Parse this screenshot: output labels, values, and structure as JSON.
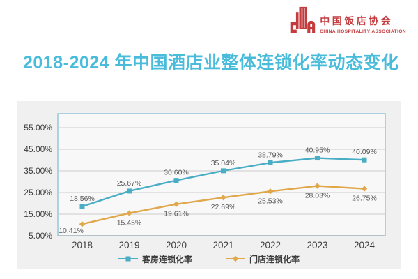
{
  "colors": {
    "title": "#4ABCDB",
    "logo_red": "#C43B3E"
  },
  "logo": {
    "icon": "building-ca-monogram-icon",
    "name_zh": "中国饭店协会",
    "name_en": "CHINA HOSPITALITY ASSOCIATION"
  },
  "chart_data": {
    "type": "line",
    "title": "2018-2024 年中国酒店业整体连锁化率动态变化",
    "categories": [
      "2018",
      "2019",
      "2020",
      "2021",
      "2022",
      "2023",
      "2024"
    ],
    "series": [
      {
        "name": "客房连锁化率",
        "color": "#48ADC5",
        "marker": "square",
        "label_position": "above",
        "values": [
          18.56,
          25.67,
          30.6,
          35.04,
          38.79,
          40.95,
          40.09
        ]
      },
      {
        "name": "门店连锁化率",
        "color": "#E0A74B",
        "marker": "diamond",
        "label_position": "below",
        "values": [
          10.41,
          15.45,
          19.61,
          22.69,
          25.53,
          28.03,
          26.75
        ]
      }
    ],
    "value_label_format": "{value}%",
    "y_axis": {
      "min": 5,
      "max": 55,
      "step": 10,
      "tick_labels": [
        "5.00%",
        "15.00%",
        "25.00%",
        "35.00%",
        "45.00%",
        "55.00%"
      ]
    },
    "ylim": [
      5,
      55
    ],
    "grid": true,
    "legend_position": "bottom",
    "style": {
      "panel_bg": "#f0f0f0",
      "plot_bg": "#f8f8f8",
      "grid_color": "#cccccc",
      "axis_line_color": "#a9a9a9",
      "plot_border_color": "#9ccbdc",
      "data_label_color": "#575757",
      "axis_text_color": "#3d3d3d",
      "legend_text_color": "#3d3d3d"
    }
  }
}
